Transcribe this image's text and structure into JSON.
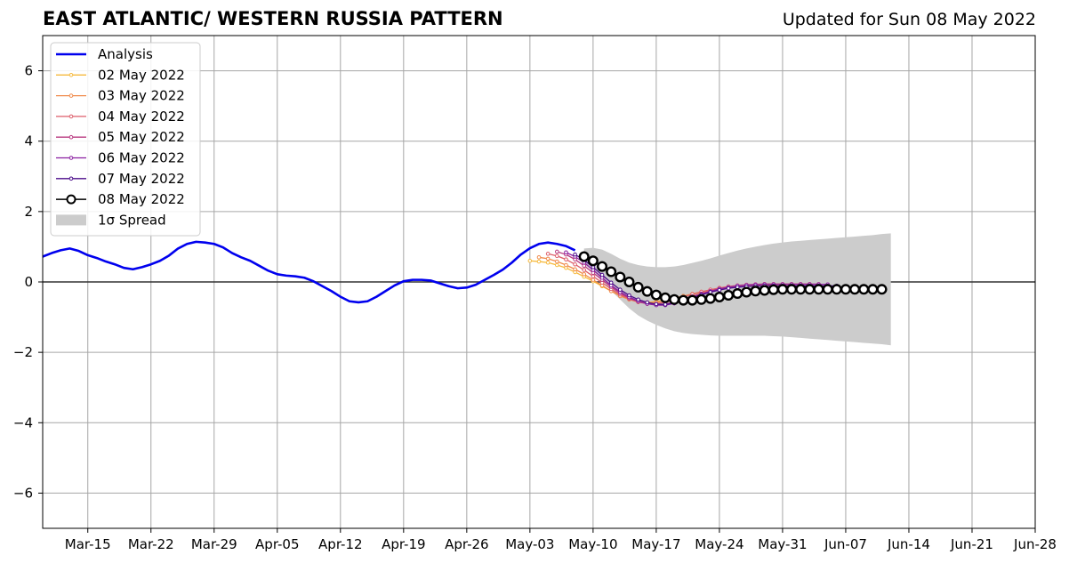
{
  "chart_data": {
    "type": "line",
    "title": "EAST ATLANTIC/ WESTERN RUSSIA PATTERN",
    "subtitle": "Updated for Sun 08 May 2022",
    "xlabel": "",
    "ylabel": "",
    "grid": true,
    "legend_position": "top-left",
    "xlim": [
      "2022-03-10",
      "2022-06-28"
    ],
    "ylim": [
      -7,
      7
    ],
    "x_ticks": [
      {
        "date": "2022-03-15",
        "label": "Mar-15"
      },
      {
        "date": "2022-03-22",
        "label": "Mar-22"
      },
      {
        "date": "2022-03-29",
        "label": "Mar-29"
      },
      {
        "date": "2022-04-05",
        "label": "Apr-05"
      },
      {
        "date": "2022-04-12",
        "label": "Apr-12"
      },
      {
        "date": "2022-04-19",
        "label": "Apr-19"
      },
      {
        "date": "2022-04-26",
        "label": "Apr-26"
      },
      {
        "date": "2022-05-03",
        "label": "May-03"
      },
      {
        "date": "2022-05-10",
        "label": "May-10"
      },
      {
        "date": "2022-05-17",
        "label": "May-17"
      },
      {
        "date": "2022-05-24",
        "label": "May-24"
      },
      {
        "date": "2022-05-31",
        "label": "May-31"
      },
      {
        "date": "2022-06-07",
        "label": "Jun-07"
      },
      {
        "date": "2022-06-14",
        "label": "Jun-14"
      },
      {
        "date": "2022-06-21",
        "label": "Jun-21"
      },
      {
        "date": "2022-06-28",
        "label": "Jun-28"
      }
    ],
    "y_ticks": [
      {
        "value": -6,
        "label": "−6"
      },
      {
        "value": -4,
        "label": "−4"
      },
      {
        "value": -2,
        "label": "−2"
      },
      {
        "value": 0,
        "label": "0"
      },
      {
        "value": 2,
        "label": "2"
      },
      {
        "value": 4,
        "label": "4"
      },
      {
        "value": 6,
        "label": "6"
      }
    ],
    "legend": [
      {
        "label": "Analysis",
        "color": "#0000ee",
        "kind": "line"
      },
      {
        "label": "02 May 2022",
        "color": "#f6b93b",
        "kind": "small-marker"
      },
      {
        "label": "03 May 2022",
        "color": "#f08a4b",
        "kind": "small-marker"
      },
      {
        "label": "04 May 2022",
        "color": "#dd5e6a",
        "kind": "small-marker"
      },
      {
        "label": "05 May 2022",
        "color": "#b8387f",
        "kind": "small-marker"
      },
      {
        "label": "06 May 2022",
        "color": "#8a1fa0",
        "kind": "small-marker"
      },
      {
        "label": "07 May 2022",
        "color": "#4b0c8a",
        "kind": "small-marker"
      },
      {
        "label": "08 May 2022",
        "color": "#000000",
        "kind": "open-marker"
      },
      {
        "label": "1σ Spread",
        "color": "#cccccc",
        "kind": "patch"
      }
    ],
    "analysis": {
      "start": "2022-03-10",
      "values": [
        0.72,
        0.82,
        0.9,
        0.95,
        0.88,
        0.76,
        0.68,
        0.58,
        0.5,
        0.4,
        0.36,
        0.42,
        0.5,
        0.6,
        0.75,
        0.95,
        1.08,
        1.14,
        1.12,
        1.08,
        0.98,
        0.82,
        0.7,
        0.6,
        0.46,
        0.32,
        0.22,
        0.18,
        0.16,
        0.12,
        0.02,
        -0.12,
        -0.26,
        -0.42,
        -0.55,
        -0.58,
        -0.55,
        -0.42,
        -0.26,
        -0.1,
        0.02,
        0.06,
        0.06,
        0.04,
        -0.04,
        -0.12,
        -0.18,
        -0.16,
        -0.08,
        0.06,
        0.2,
        0.35,
        0.55,
        0.78,
        0.96,
        1.08,
        1.12,
        1.08,
        1.02,
        0.9
      ]
    },
    "series": [
      {
        "name": "02 May 2022",
        "start": "2022-05-03",
        "color": "#f6b93b",
        "values": [
          0.6,
          0.58,
          0.55,
          0.48,
          0.4,
          0.28,
          0.15,
          0.02,
          -0.12,
          -0.26,
          -0.38,
          -0.48,
          -0.55,
          -0.58,
          -0.56,
          -0.52,
          -0.46,
          -0.4,
          -0.35,
          -0.3,
          -0.25,
          -0.21,
          -0.17,
          -0.14,
          -0.12,
          -0.1,
          -0.09,
          -0.08,
          -0.08,
          -0.08
        ]
      },
      {
        "name": "03 May 2022",
        "start": "2022-05-04",
        "color": "#f08a4b",
        "values": [
          0.7,
          0.66,
          0.58,
          0.48,
          0.36,
          0.22,
          0.06,
          -0.1,
          -0.26,
          -0.4,
          -0.5,
          -0.57,
          -0.6,
          -0.58,
          -0.53,
          -0.47,
          -0.4,
          -0.34,
          -0.28,
          -0.23,
          -0.18,
          -0.14,
          -0.11,
          -0.09,
          -0.08,
          -0.07,
          -0.07,
          -0.07,
          -0.07,
          -0.07
        ]
      },
      {
        "name": "04 May 2022",
        "start": "2022-05-05",
        "color": "#dd5e6a",
        "values": [
          0.8,
          0.74,
          0.64,
          0.5,
          0.34,
          0.16,
          -0.02,
          -0.2,
          -0.36,
          -0.48,
          -0.57,
          -0.62,
          -0.62,
          -0.58,
          -0.51,
          -0.43,
          -0.35,
          -0.28,
          -0.22,
          -0.17,
          -0.13,
          -0.1,
          -0.08,
          -0.07,
          -0.06,
          -0.06,
          -0.06,
          -0.06,
          -0.06,
          -0.06
        ]
      },
      {
        "name": "05 May 2022",
        "start": "2022-05-06",
        "color": "#b8387f",
        "values": [
          0.86,
          0.78,
          0.64,
          0.46,
          0.26,
          0.06,
          -0.14,
          -0.32,
          -0.46,
          -0.56,
          -0.62,
          -0.65,
          -0.63,
          -0.58,
          -0.5,
          -0.41,
          -0.33,
          -0.26,
          -0.2,
          -0.15,
          -0.11,
          -0.09,
          -0.07,
          -0.06,
          -0.06,
          -0.06,
          -0.06,
          -0.06,
          -0.06,
          -0.06
        ]
      },
      {
        "name": "06 May 2022",
        "start": "2022-05-07",
        "color": "#8a1fa0",
        "values": [
          0.84,
          0.72,
          0.55,
          0.34,
          0.12,
          -0.1,
          -0.28,
          -0.43,
          -0.54,
          -0.62,
          -0.66,
          -0.66,
          -0.61,
          -0.53,
          -0.44,
          -0.35,
          -0.27,
          -0.2,
          -0.15,
          -0.11,
          -0.09,
          -0.08,
          -0.07,
          -0.07,
          -0.07,
          -0.07,
          -0.07,
          -0.07,
          -0.07,
          -0.07
        ]
      },
      {
        "name": "07 May 2022",
        "start": "2022-05-08",
        "color": "#4b0c8a",
        "values": [
          0.78,
          0.62,
          0.42,
          0.2,
          -0.02,
          -0.22,
          -0.38,
          -0.5,
          -0.58,
          -0.63,
          -0.64,
          -0.6,
          -0.53,
          -0.45,
          -0.37,
          -0.29,
          -0.23,
          -0.18,
          -0.15,
          -0.13,
          -0.12,
          -0.11,
          -0.11,
          -0.11,
          -0.11,
          -0.11,
          -0.11,
          -0.11,
          -0.11,
          -0.11
        ]
      },
      {
        "name": "08 May 2022",
        "start": "2022-05-09",
        "color": "#000000",
        "values": [
          0.72,
          0.6,
          0.44,
          0.29,
          0.14,
          0.0,
          -0.15,
          -0.27,
          -0.37,
          -0.45,
          -0.5,
          -0.52,
          -0.52,
          -0.5,
          -0.47,
          -0.43,
          -0.38,
          -0.33,
          -0.29,
          -0.26,
          -0.24,
          -0.22,
          -0.21,
          -0.21,
          -0.21,
          -0.21,
          -0.21,
          -0.21,
          -0.21,
          -0.21,
          -0.21,
          -0.21,
          -0.21,
          -0.21
        ]
      }
    ],
    "spread": {
      "start": "2022-05-09",
      "end": "2022-06-12",
      "upper": [
        0.95,
        0.97,
        0.92,
        0.8,
        0.66,
        0.55,
        0.48,
        0.44,
        0.42,
        0.42,
        0.44,
        0.48,
        0.54,
        0.6,
        0.67,
        0.75,
        0.82,
        0.89,
        0.95,
        1.0,
        1.05,
        1.09,
        1.12,
        1.15,
        1.17,
        1.19,
        1.21,
        1.23,
        1.25,
        1.27,
        1.29,
        1.31,
        1.33,
        1.36,
        1.38
      ],
      "lower": [
        0.5,
        0.3,
        0.05,
        -0.25,
        -0.5,
        -0.75,
        -0.95,
        -1.1,
        -1.22,
        -1.32,
        -1.4,
        -1.45,
        -1.48,
        -1.5,
        -1.52,
        -1.53,
        -1.53,
        -1.53,
        -1.53,
        -1.53,
        -1.53,
        -1.54,
        -1.55,
        -1.57,
        -1.59,
        -1.61,
        -1.63,
        -1.65,
        -1.67,
        -1.69,
        -1.71,
        -1.73,
        -1.75,
        -1.77,
        -1.8
      ]
    }
  }
}
